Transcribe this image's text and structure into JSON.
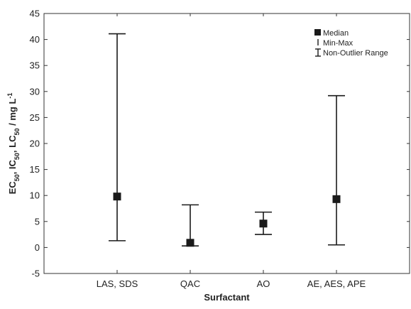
{
  "chart_data": {
    "type": "box",
    "xlabel": "Surfactant",
    "ylabel": {
      "parts": [
        {
          "t": "EC"
        },
        {
          "t": "50",
          "sub": true
        },
        {
          "t": ", IC"
        },
        {
          "t": "50",
          "sub": true
        },
        {
          "t": ", LC"
        },
        {
          "t": "50",
          "sub": true
        },
        {
          "t": " / mg L"
        },
        {
          "t": "-1",
          "sup": true
        }
      ]
    },
    "ylim": [
      -5,
      45
    ],
    "yticks": [
      "-5",
      "0",
      "5",
      "10",
      "15",
      "20",
      "25",
      "30",
      "35",
      "40",
      "45"
    ],
    "categories": [
      "LAS, SDS",
      "QAC",
      "AO",
      "AE, AES, APE"
    ],
    "series": [
      {
        "category": "LAS, SDS",
        "median": 9.8,
        "whisker_low": 1.3,
        "whisker_high": 41.1
      },
      {
        "category": "QAC",
        "median": 0.9,
        "whisker_low": 0.3,
        "whisker_high": 8.2
      },
      {
        "category": "AO",
        "median": 4.6,
        "whisker_low": 2.5,
        "whisker_high": 6.8
      },
      {
        "category": "AE, AES, APE",
        "median": 9.3,
        "whisker_low": 0.5,
        "whisker_high": 29.2
      }
    ],
    "legend": {
      "position": "top-right",
      "entries": [
        "Median",
        "Min-Max",
        "Non-Outlier Range"
      ]
    },
    "grid": false,
    "colors": {
      "marks": "#1a1a1a",
      "axis": "#333333"
    }
  }
}
